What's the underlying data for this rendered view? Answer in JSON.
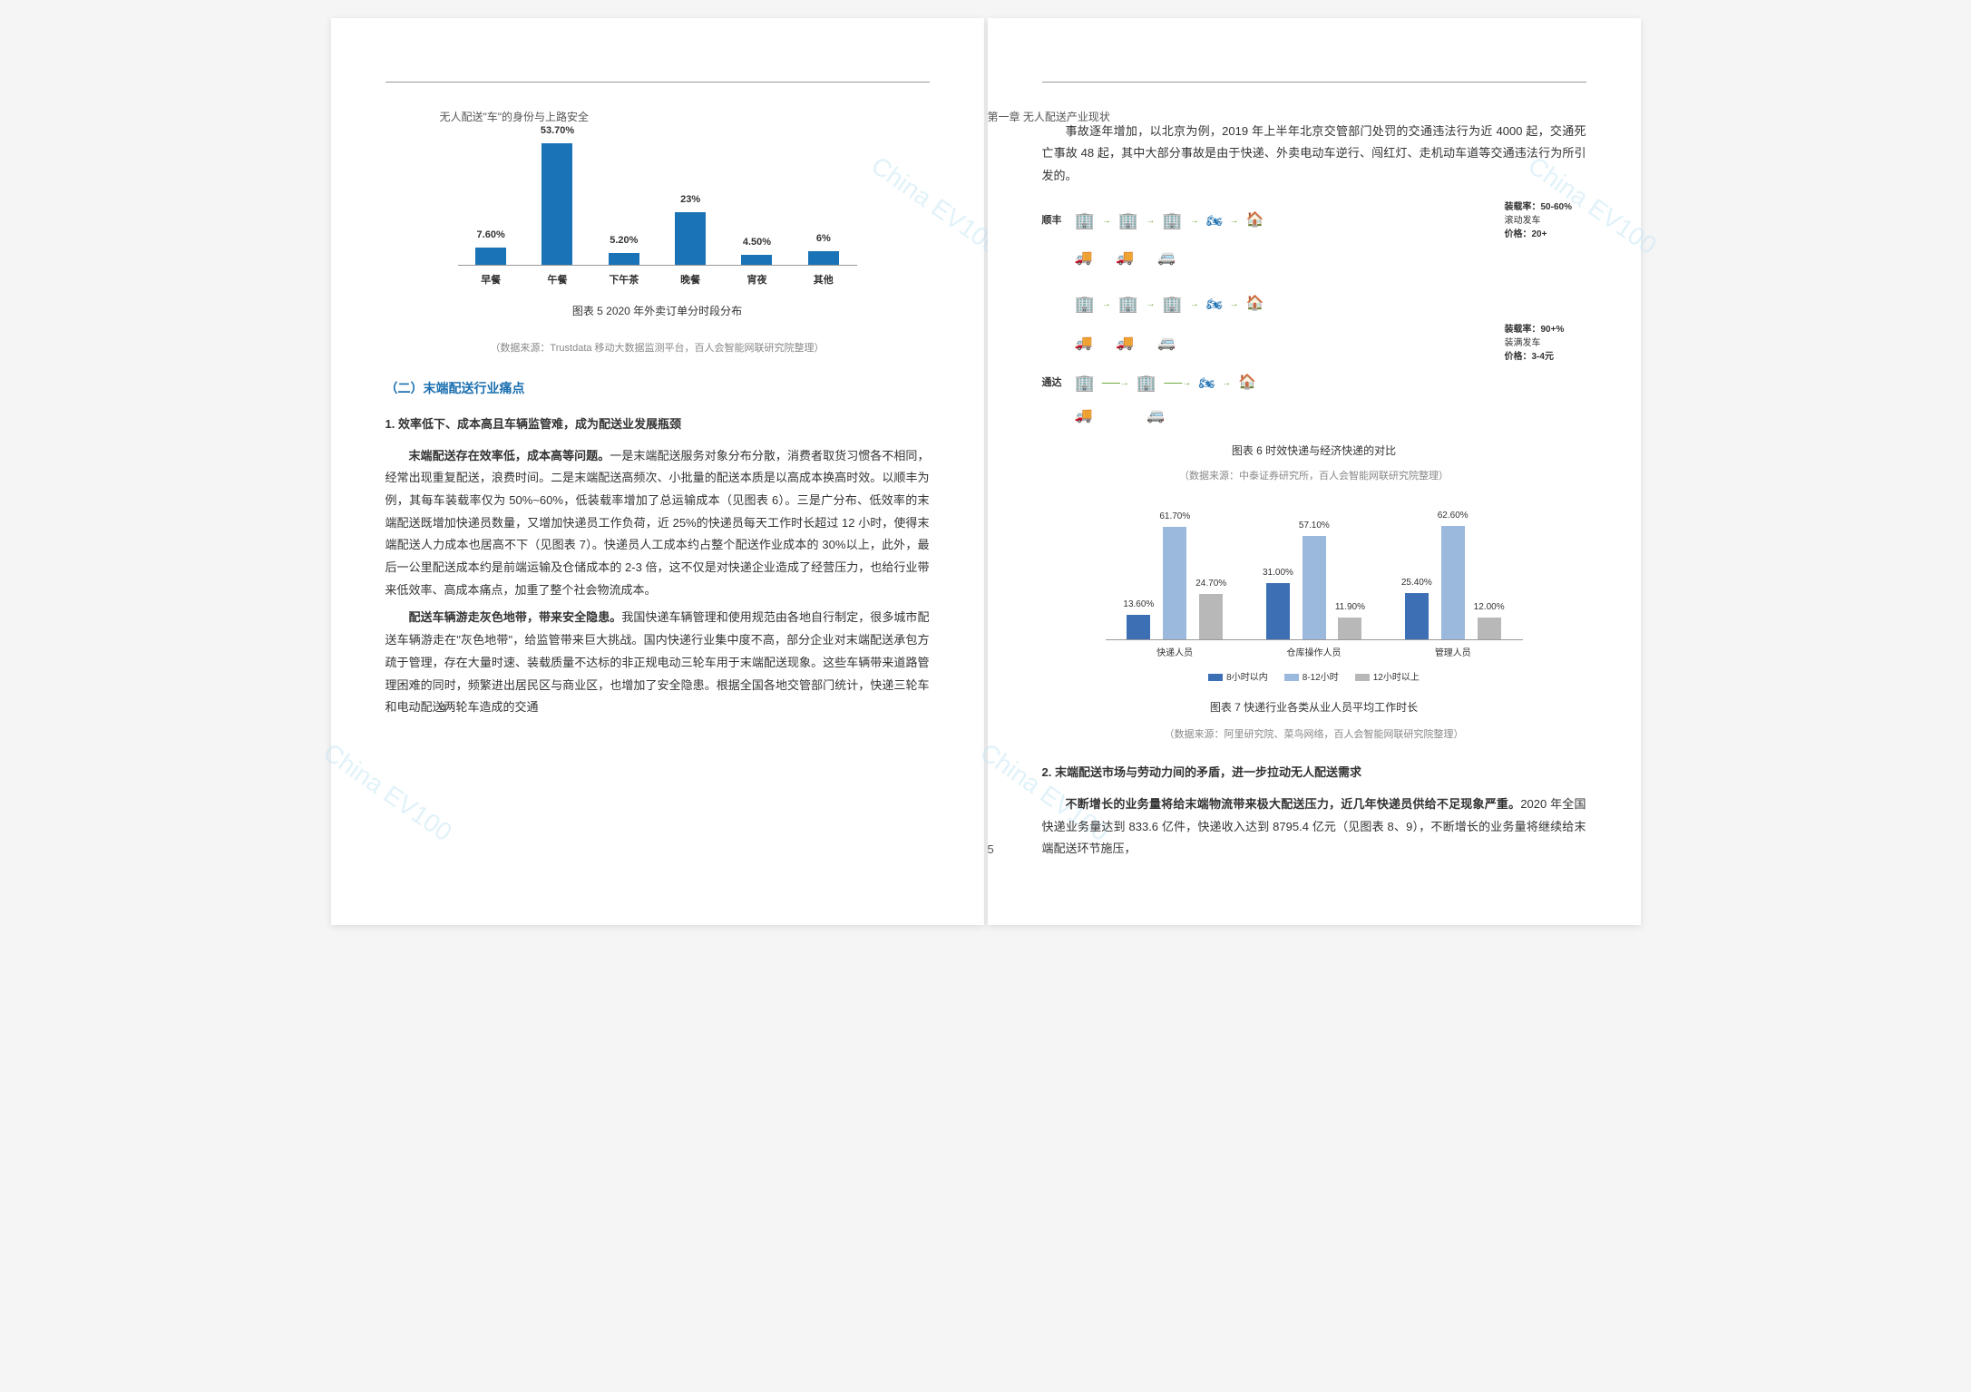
{
  "leftPage": {
    "header": "无人配送\"车\"的身份与上路安全",
    "pageNumber": "4",
    "chart5": {
      "type": "bar",
      "categories": [
        "早餐",
        "午餐",
        "下午茶",
        "晚餐",
        "宵夜",
        "其他"
      ],
      "values": [
        7.6,
        53.7,
        5.2,
        23,
        4.5,
        6
      ],
      "value_labels": [
        "7.60%",
        "53.70%",
        "5.20%",
        "23%",
        "4.50%",
        "6%"
      ],
      "bar_color": "#1a73b7",
      "max_scale": 60,
      "caption": "图表 5 2020 年外卖订单分时段分布",
      "source": "（数据来源：Trustdata 移动大数据监测平台，百人会智能网联研究院整理）"
    },
    "sectionTitle": "（二）末端配送行业痛点",
    "sub1": "1. 效率低下、成本高且车辆监管难，成为配送业发展瓶颈",
    "para1_lead": "末端配送存在效率低，成本高等问题。",
    "para1_rest": "一是末端配送服务对象分布分散，消费者取货习惯各不相同，经常出现重复配送，浪费时间。二是末端配送高频次、小批量的配送本质是以高成本换高时效。以顺丰为例，其每车装载率仅为 50%~60%，低装载率增加了总运输成本（见图表 6）。三是广分布、低效率的末端配送既增加快递员数量，又增加快递员工作负荷，近 25%的快递员每天工作时长超过 12 小时，使得末端配送人力成本也居高不下（见图表 7）。快递员人工成本约占整个配送作业成本的 30%以上，此外，最后一公里配送成本约是前端运输及仓储成本的 2-3 倍，这不仅是对快递企业造成了经营压力，也给行业带来低效率、高成本痛点，加重了整个社会物流成本。",
    "para2_lead": "配送车辆游走灰色地带，带来安全隐患。",
    "para2_rest": "我国快递车辆管理和使用规范由各地自行制定，很多城市配送车辆游走在\"灰色地带\"，给监管带来巨大挑战。国内快递行业集中度不高，部分企业对末端配送承包方疏于管理，存在大量时速、装载质量不达标的非正规电动三轮车用于末端配送现象。这些车辆带来道路管理困难的同时，频繁进出居民区与商业区，也增加了安全隐患。根据全国各地交管部门统计，快递三轮车和电动配送两轮车造成的交通"
  },
  "rightPage": {
    "header": "第一章 无人配送产业现状",
    "pageNumber": "5",
    "para_top": "事故逐年增加，以北京为例，2019 年上半年北京交管部门处罚的交通违法行为近 4000 起，交通死亡事故 48 起，其中大部分事故是由于快递、外卖电动车逆行、闯红灯、走机动车道等交通违法行为所引发的。",
    "chart6": {
      "caption": "图表 6  时效快递与经济快递的对比",
      "source": "（数据来源：中泰证券研究所，百人会智能网联研究院整理）",
      "row1_label": "顺丰",
      "row1_info": "装载率：50-60%\n滚动发车\n价格：20+",
      "row2_label": "通达",
      "row2_info": "装载率：90+%\n装满发车\n价格：3-4元",
      "colors": {
        "arrow": "#6fa83e",
        "warehouse": "#1a6fb0",
        "van": "#2aa6a0"
      }
    },
    "chart7": {
      "type": "grouped-bar",
      "groups": [
        "快递人员",
        "仓库操作人员",
        "管理人员"
      ],
      "series": [
        {
          "name": "8小时以内",
          "color": "#3d6fb5",
          "values": [
            13.6,
            31.0,
            25.4
          ]
        },
        {
          "name": "8-12小时",
          "color": "#9bb8dd",
          "values": [
            61.7,
            57.1,
            62.6
          ]
        },
        {
          "name": "12小时以上",
          "color": "#b8b8b8",
          "values": [
            24.7,
            11.9,
            12.0
          ]
        }
      ],
      "value_labels": [
        [
          "13.60%",
          "61.70%",
          "24.70%"
        ],
        [
          "31.00%",
          "57.10%",
          "11.90%"
        ],
        [
          "25.40%",
          "62.60%",
          "12.00%"
        ]
      ],
      "max_scale": 70,
      "caption": "图表 7 快递行业各类从业人员平均工作时长",
      "source": "（数据来源：阿里研究院、菜鸟网络，百人会智能网联研究院整理）"
    },
    "sub2": "2. 末端配送市场与劳动力间的矛盾，进一步拉动无人配送需求",
    "para3_lead": "不断增长的业务量将给末端物流带来极大配送压力，近几年快递员供给不足现象严重。",
    "para3_rest": "2020 年全国快递业务量达到 833.6 亿件，快递收入达到 8795.4 亿元（见图表 8、9），不断增长的业务量将继续给末端配送环节施压，"
  }
}
